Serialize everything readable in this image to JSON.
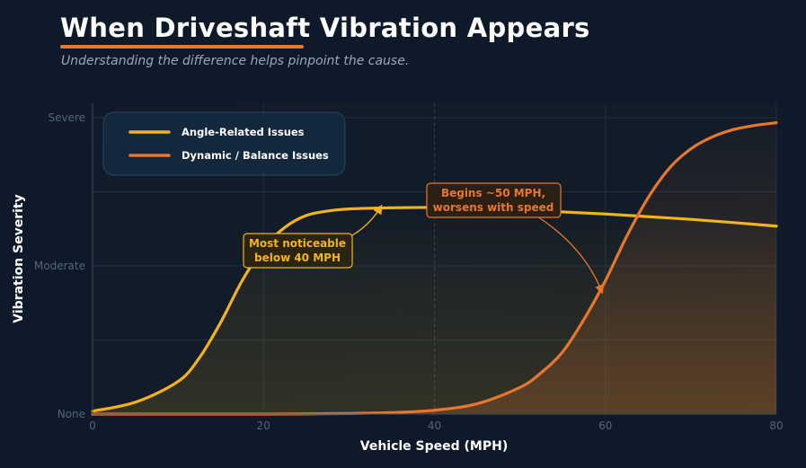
{
  "header": {
    "title": "When Driveshaft Vibration Appears",
    "subtitle": "Understanding the difference helps pinpoint the cause."
  },
  "colors": {
    "angle": "#f2b418",
    "dynamic": "#e8772e",
    "background": "#0e1a29"
  },
  "chart_data": {
    "type": "line",
    "xlabel": "Vehicle Speed (MPH)",
    "ylabel": "Vibration Severity",
    "xlim": [
      0,
      80
    ],
    "ylim": [
      0,
      100
    ],
    "x_ticks": [
      0,
      20,
      40,
      60,
      80
    ],
    "y_ticks": [
      {
        "value": 0,
        "label": "None"
      },
      {
        "value": 50,
        "label": "Moderate"
      },
      {
        "value": 100,
        "label": "Severe"
      }
    ],
    "grid": true,
    "legend_position": "top-left",
    "series": [
      {
        "name": "Angle-Related Issues",
        "x": [
          0,
          5,
          10,
          12.5,
          15,
          17.5,
          20,
          22.5,
          25,
          27.5,
          30,
          35,
          40,
          45,
          50,
          55,
          60,
          65,
          70,
          75,
          80
        ],
        "y": [
          1,
          4,
          11,
          19,
          31,
          45,
          56,
          63,
          67,
          68.5,
          69.2,
          69.6,
          69.7,
          69.4,
          68.8,
          68.2,
          67.5,
          66.6,
          65.7,
          64.6,
          63.4
        ]
      },
      {
        "name": "Dynamic / Balance Issues",
        "x": [
          0,
          10,
          20,
          30,
          35,
          40,
          45,
          50,
          52.5,
          55,
          57.5,
          60,
          62.5,
          65,
          67.5,
          70,
          72.5,
          75,
          77.5,
          80
        ],
        "y": [
          0,
          0,
          0,
          0.2,
          0.5,
          1.3,
          3.5,
          9,
          14,
          21,
          32,
          45,
          60,
          73,
          83,
          89.5,
          93.5,
          96,
          97.4,
          98.3
        ]
      }
    ],
    "annotations": [
      {
        "text": [
          "Most noticeable",
          "below 40 MPH"
        ],
        "series": 0,
        "arrow_x": 34,
        "arrow_y": 70
      },
      {
        "text": [
          "Begins ~50 MPH,",
          "worsens with speed"
        ],
        "series": 1,
        "arrow_x": 60,
        "arrow_y": 40
      }
    ]
  }
}
